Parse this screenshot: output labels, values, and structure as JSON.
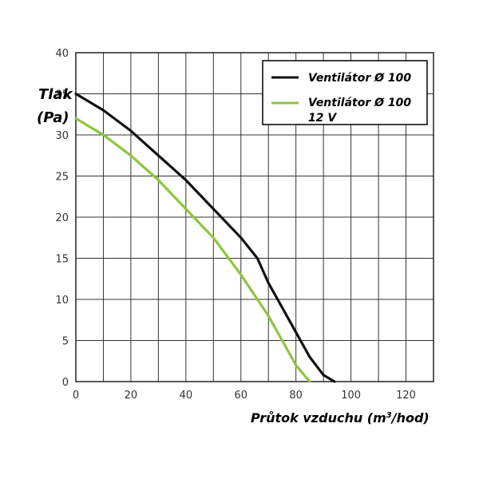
{
  "chart_data": {
    "type": "line",
    "xlabel_main": "Průtok vzduchu (m",
    "xlabel_sup": "3",
    "xlabel_end": "/hod)",
    "ylabel_line1": "Tlak",
    "ylabel_line2": "(Pa)",
    "xlim": [
      0,
      130
    ],
    "ylim": [
      0,
      40
    ],
    "xticks": [
      0,
      20,
      40,
      60,
      80,
      100,
      120
    ],
    "yticks": [
      0,
      5,
      10,
      15,
      20,
      25,
      30,
      35,
      40
    ],
    "grid": true,
    "legend_position": "top-right",
    "series": [
      {
        "name": "Ventilátor Ø 100",
        "color": "#111111",
        "points": [
          [
            0,
            35
          ],
          [
            10,
            33
          ],
          [
            20,
            30.5
          ],
          [
            30,
            27.5
          ],
          [
            40,
            24.5
          ],
          [
            50,
            21
          ],
          [
            60,
            17.5
          ],
          [
            66,
            15
          ],
          [
            70,
            12
          ],
          [
            75,
            9
          ],
          [
            80,
            6
          ],
          [
            85,
            3
          ],
          [
            90,
            0.8
          ],
          [
            94,
            0
          ]
        ]
      },
      {
        "name": "Ventilátor Ø 100",
        "name_line2": "12 V",
        "color": "#8cc63f",
        "points": [
          [
            0,
            32
          ],
          [
            10,
            30
          ],
          [
            20,
            27.5
          ],
          [
            30,
            24.5
          ],
          [
            40,
            21
          ],
          [
            50,
            17.5
          ],
          [
            60,
            13
          ],
          [
            65,
            10.5
          ],
          [
            70,
            8
          ],
          [
            75,
            5
          ],
          [
            80,
            2
          ],
          [
            85,
            0
          ]
        ]
      }
    ]
  }
}
